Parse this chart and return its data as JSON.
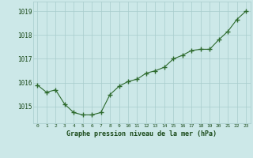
{
  "x": [
    0,
    1,
    2,
    3,
    4,
    5,
    6,
    7,
    8,
    9,
    10,
    11,
    12,
    13,
    14,
    15,
    16,
    17,
    18,
    19,
    20,
    21,
    22,
    23
  ],
  "y": [
    1015.9,
    1015.6,
    1015.7,
    1015.1,
    1014.75,
    1014.65,
    1014.65,
    1014.75,
    1015.5,
    1015.85,
    1016.05,
    1016.15,
    1016.4,
    1016.5,
    1016.65,
    1017.0,
    1017.15,
    1017.35,
    1017.4,
    1017.4,
    1017.8,
    1018.15,
    1018.65,
    1019.0
  ],
  "line_color": "#2d6a2d",
  "marker_color": "#2d6a2d",
  "bg_color": "#cce8e8",
  "grid_color": "#a8cccc",
  "title": "Graphe pression niveau de la mer (hPa)",
  "title_color": "#1a4a1a",
  "ytick_labels": [
    "1015",
    "1016",
    "1017",
    "1018",
    "1019"
  ],
  "ytick_vals": [
    1015,
    1016,
    1017,
    1018,
    1019
  ],
  "xtick_labels": [
    "0",
    "1",
    "2",
    "3",
    "4",
    "5",
    "6",
    "7",
    "8",
    "9",
    "10",
    "11",
    "12",
    "13",
    "14",
    "15",
    "16",
    "17",
    "18",
    "19",
    "20",
    "21",
    "22",
    "23"
  ],
  "ylim": [
    1014.3,
    1019.4
  ],
  "xlim": [
    -0.5,
    23.5
  ]
}
